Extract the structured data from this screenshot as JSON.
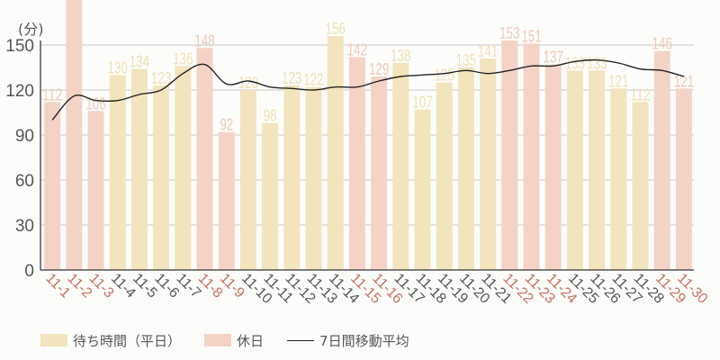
{
  "chart_data": {
    "type": "bar",
    "title": "",
    "ylabel": "(分)",
    "xlabel": "",
    "ylim": [
      0,
      180
    ],
    "yticks": [
      0,
      30,
      60,
      90,
      120,
      150
    ],
    "grid": true,
    "legend_position": "bottom-left",
    "categories": [
      "11-1",
      "11-2",
      "11-3",
      "11-4",
      "11-5",
      "11-6",
      "11-7",
      "11-8",
      "11-9",
      "11-10",
      "11-11",
      "11-12",
      "11-13",
      "11-14",
      "11-15",
      "11-16",
      "11-17",
      "11-18",
      "11-19",
      "11-20",
      "11-21",
      "11-22",
      "11-23",
      "11-24",
      "11-25",
      "11-26",
      "11-27",
      "11-28",
      "11-29",
      "11-30"
    ],
    "holiday": [
      true,
      true,
      true,
      false,
      false,
      false,
      false,
      true,
      true,
      false,
      false,
      false,
      false,
      false,
      true,
      true,
      false,
      false,
      false,
      false,
      false,
      true,
      true,
      true,
      false,
      false,
      false,
      false,
      true,
      true
    ],
    "values": [
      112,
      null,
      106,
      130,
      134,
      123,
      136,
      148,
      92,
      120,
      98,
      123,
      122,
      156,
      142,
      129,
      138,
      107,
      125,
      135,
      141,
      153,
      151,
      137,
      133,
      133,
      121,
      112,
      146,
      121
    ],
    "clipped_note": "11-2 bar exceeds the top of the plot area; its label is not visible",
    "series": [
      {
        "name": "待ち時間（平日）",
        "type": "bar",
        "color": "#f2e4bc"
      },
      {
        "name": "休日",
        "type": "bar",
        "color": "#f4d3c6"
      },
      {
        "name": "7日間移動平均",
        "type": "line",
        "color": "#222222",
        "values": [
          100,
          116,
          113,
          113,
          117,
          120,
          131,
          137,
          124,
          126,
          122,
          121,
          120,
          122,
          122,
          126,
          129,
          130,
          131,
          133,
          131,
          133,
          136,
          136,
          139,
          140,
          138,
          134,
          133,
          129
        ]
      }
    ]
  },
  "colors": {
    "weekday": "#f2e4bc",
    "holiday": "#f4d3c6",
    "weekday_label": "#eedfb4",
    "holiday_label": "#f0c8b8",
    "holiday_tick": "#c8705a",
    "weekday_tick": "#555555",
    "grid": "#c8c8c8",
    "axis": "#555555"
  },
  "legend": {
    "weekday": "待ち時間（平日）",
    "holiday": "休日",
    "average": "7日間移動平均"
  }
}
